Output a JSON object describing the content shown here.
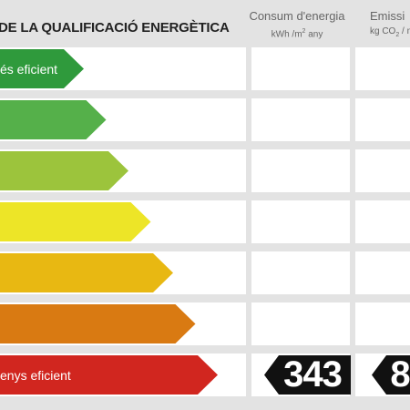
{
  "header": {
    "title": "DE LA QUALIFICACIÓ ENERGÈTICA",
    "column_energy": {
      "label": "Consum d'energia",
      "unit_prefix": "kWh /m",
      "unit_sup": "2",
      "unit_suffix": " any"
    },
    "column_emissions": {
      "label": "Emissi",
      "unit_prefix": "kg CO",
      "unit_sub": "2",
      "unit_suffix": " / m"
    }
  },
  "scale": {
    "top_label": "és eficient",
    "bottom_label": "enys eficient",
    "bands": [
      {
        "color": "#2f9a3c"
      },
      {
        "color": "#55b04a"
      },
      {
        "color": "#9cc43c"
      },
      {
        "color": "#ede527"
      },
      {
        "color": "#e8b812"
      },
      {
        "color": "#d97a12"
      },
      {
        "color": "#d1261f"
      }
    ]
  },
  "rating": {
    "energy_value": "343",
    "emissions_value": "8"
  },
  "colors": {
    "tag_bg": "#111111",
    "background": "#e3e3e3",
    "panel": "#ffffff"
  }
}
